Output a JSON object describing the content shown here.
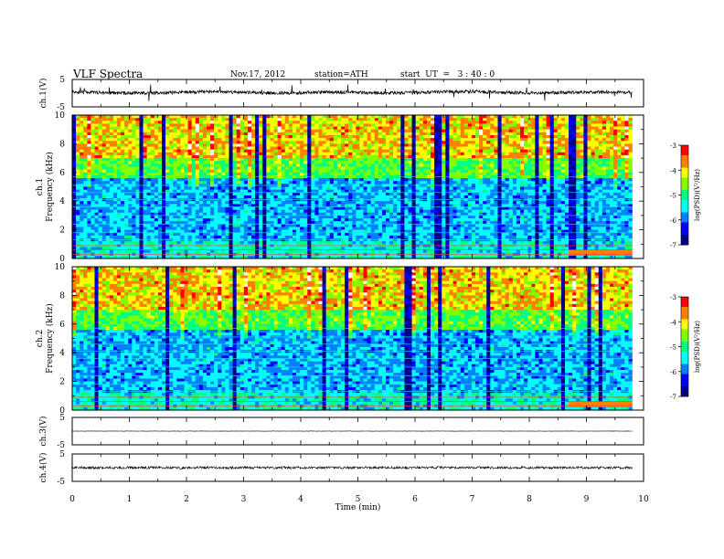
{
  "header": {
    "title": "VLF Spectra",
    "date": "Nov.17, 2012",
    "station": "station=ATH",
    "start": "start  UT  =   3 : 40 : 0"
  },
  "chart_data": [
    {
      "type": "line",
      "panel": "ch1-waveform",
      "ylabel": "ch.1(V)",
      "ylim": [
        -5,
        5
      ],
      "yticks": [
        "5",
        "-5"
      ],
      "x": [
        0.0,
        0.5,
        1.0,
        1.5,
        2.0,
        2.5,
        3.0,
        3.5,
        4.0,
        4.5,
        5.0,
        5.5,
        6.0,
        6.5,
        7.0,
        7.5,
        8.0,
        8.5,
        9.0,
        9.5,
        9.8
      ],
      "y": [
        0.5,
        0.2,
        0.0,
        0.1,
        0.4,
        0.6,
        0.3,
        0.0,
        0.2,
        0.4,
        0.3,
        0.1,
        0.2,
        0.5,
        0.6,
        0.3,
        0.1,
        0.2,
        0.4,
        0.3,
        0.2
      ],
      "color": "#000000"
    },
    {
      "type": "heatmap",
      "panel": "ch1-spectrogram",
      "ylabel": "ch.1 Frequency (kHz)",
      "ylim": [
        0,
        10
      ],
      "yticks": [
        "0",
        "2",
        "4",
        "6",
        "8",
        "10"
      ],
      "colorbar_label": "log(PSD)(V²/Hz)",
      "colorbar_range": [
        -7,
        -3
      ],
      "colorbar_ticks": [
        "-3",
        "-4",
        "-5",
        "-6",
        "-7"
      ]
    },
    {
      "type": "heatmap",
      "panel": "ch2-spectrogram",
      "ylabel": "ch.2 Frequency (kHz)",
      "ylim": [
        0,
        10
      ],
      "yticks": [
        "0",
        "2",
        "4",
        "6",
        "8",
        "10"
      ],
      "colorbar_label": "log(PSD)(V²/Hz)",
      "colorbar_range": [
        -7,
        -3
      ],
      "colorbar_ticks": [
        "-3",
        "-4",
        "-5",
        "-6",
        "-7"
      ]
    },
    {
      "type": "line",
      "panel": "ch3-waveform",
      "ylabel": "ch.3(V)",
      "ylim": [
        -5,
        5
      ],
      "yticks": [
        "5",
        "-5"
      ],
      "x": [
        0.0,
        9.8
      ],
      "y": [
        0.0,
        0.0
      ],
      "color": "#000000"
    },
    {
      "type": "line",
      "panel": "ch4-waveform",
      "ylabel": "ch.4(V)",
      "ylim": [
        -5,
        5
      ],
      "yticks": [
        "5",
        "-5"
      ],
      "x": [
        0.0,
        9.8
      ],
      "y": [
        0.0,
        0.0
      ],
      "color": "#000000"
    }
  ],
  "xaxis": {
    "label": "Time  (min)",
    "range": [
      0,
      10
    ],
    "ticks": [
      "0",
      "1",
      "2",
      "3",
      "4",
      "5",
      "6",
      "7",
      "8",
      "9",
      "10"
    ]
  },
  "colormap": [
    "#000080",
    "#0000ff",
    "#0080ff",
    "#00ffff",
    "#00ff80",
    "#80ff00",
    "#ffff00",
    "#ff8000",
    "#ff0000",
    "#ffffff"
  ]
}
